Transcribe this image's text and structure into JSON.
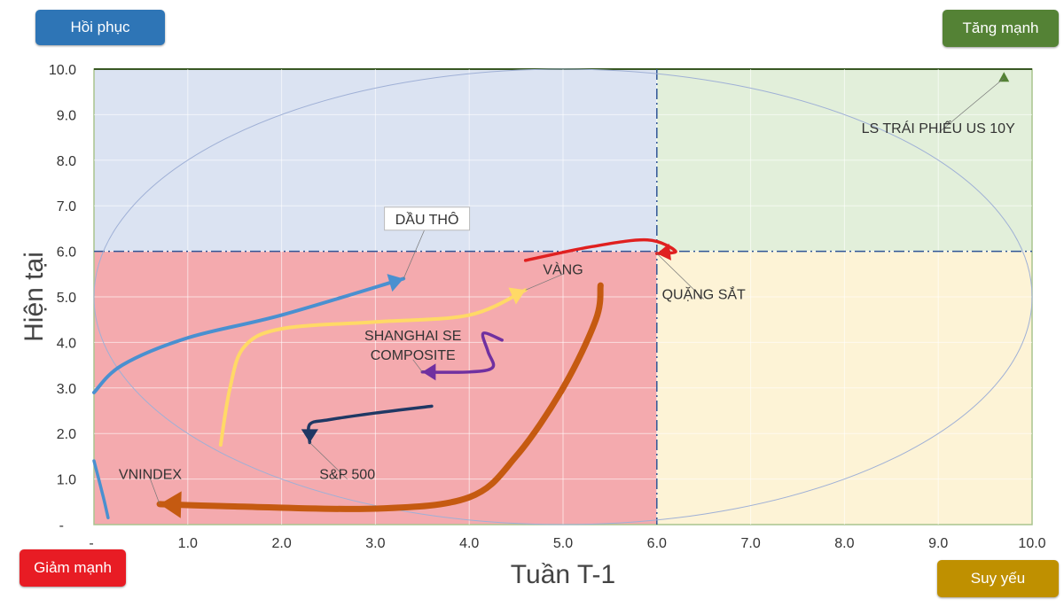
{
  "quadrants": {
    "top_left": {
      "label": "Hồi phục",
      "color": "#2e75b6",
      "bg": "#dbe3f2"
    },
    "top_right": {
      "label": "Tăng mạnh",
      "color": "#548235",
      "bg": "#e2efda"
    },
    "bottom_left": {
      "label": "Giảm mạnh",
      "color": "#e81c24",
      "bg": "#f4aaae"
    },
    "bottom_right": {
      "label": "Suy yếu",
      "color": "#bf9000",
      "bg": "#fdf3d6"
    }
  },
  "chart_data": {
    "type": "line",
    "xlabel": "Tuần T-1",
    "ylabel": "Hiện tại",
    "xlim": [
      0,
      10
    ],
    "ylim": [
      0,
      10
    ],
    "x_ticks": [
      "-",
      "1.0",
      "2.0",
      "3.0",
      "4.0",
      "5.0",
      "6.0",
      "7.0",
      "8.0",
      "9.0",
      "10.0"
    ],
    "y_ticks": [
      "-",
      "1.0",
      "2.0",
      "3.0",
      "4.0",
      "5.0",
      "6.0",
      "7.0",
      "8.0",
      "9.0",
      "10.0"
    ],
    "grid": true,
    "thresholds": {
      "x": 6.0,
      "y": 6.0
    },
    "series": [
      {
        "name": "DẦU THÔ",
        "color": "#4a90d0",
        "label_at": [
          3.55,
          6.6
        ],
        "boxed": true,
        "points": [
          [
            0,
            2.9
          ],
          [
            0.3,
            3.5
          ],
          [
            1,
            4.1
          ],
          [
            2,
            4.6
          ],
          [
            3.3,
            5.4
          ]
        ]
      },
      {
        "name": "",
        "color": "#4a90d0",
        "points": [
          [
            0,
            1.4
          ],
          [
            0.1,
            0.6
          ],
          [
            0.15,
            0.15
          ]
        ]
      },
      {
        "name": "VÀNG",
        "color": "#ffd966",
        "label_at": [
          5.0,
          5.5
        ],
        "points": [
          [
            1.35,
            1.75
          ],
          [
            1.45,
            3.0
          ],
          [
            1.6,
            3.9
          ],
          [
            2.0,
            4.3
          ],
          [
            3,
            4.45
          ],
          [
            4,
            4.6
          ],
          [
            4.6,
            5.15
          ]
        ]
      },
      {
        "name": "SHANGHAI SE COMPOSITE",
        "color": "#7030a0",
        "label_at": [
          3.4,
          4.05
        ],
        "points": [
          [
            4.35,
            4.05
          ],
          [
            4.15,
            4.2
          ],
          [
            4.2,
            3.8
          ],
          [
            4.25,
            3.45
          ],
          [
            4.0,
            3.35
          ],
          [
            3.5,
            3.35
          ]
        ]
      },
      {
        "name": "S&P 500",
        "color": "#1f3864",
        "label_at": [
          2.7,
          1.0
        ],
        "points": [
          [
            3.6,
            2.6
          ],
          [
            3.0,
            2.45
          ],
          [
            2.5,
            2.3
          ],
          [
            2.3,
            2.2
          ],
          [
            2.3,
            1.8
          ]
        ]
      },
      {
        "name": "VNINDEX",
        "color": "#c55a11",
        "label_at": [
          0.6,
          1.0
        ],
        "points": [
          [
            5.4,
            5.25
          ],
          [
            5.35,
            4.5
          ],
          [
            5.0,
            3.0
          ],
          [
            4.5,
            1.5
          ],
          [
            4,
            0.6
          ],
          [
            3,
            0.35
          ],
          [
            1.5,
            0.4
          ],
          [
            0.7,
            0.45
          ]
        ]
      },
      {
        "name": "QUẶNG SẮT",
        "color": "#e02020",
        "label_at": [
          6.5,
          4.95
        ],
        "points": [
          [
            4.6,
            5.8
          ],
          [
            5.3,
            6.1
          ],
          [
            5.9,
            6.25
          ],
          [
            6.2,
            6.0
          ],
          [
            6.0,
            5.95
          ]
        ]
      },
      {
        "name": "LS TRÁI PHIẾU US 10Y",
        "color": "#548235",
        "label_at": [
          9.0,
          8.6
        ],
        "marker": "triangle",
        "points": [
          [
            9.7,
            9.8
          ]
        ]
      }
    ]
  }
}
